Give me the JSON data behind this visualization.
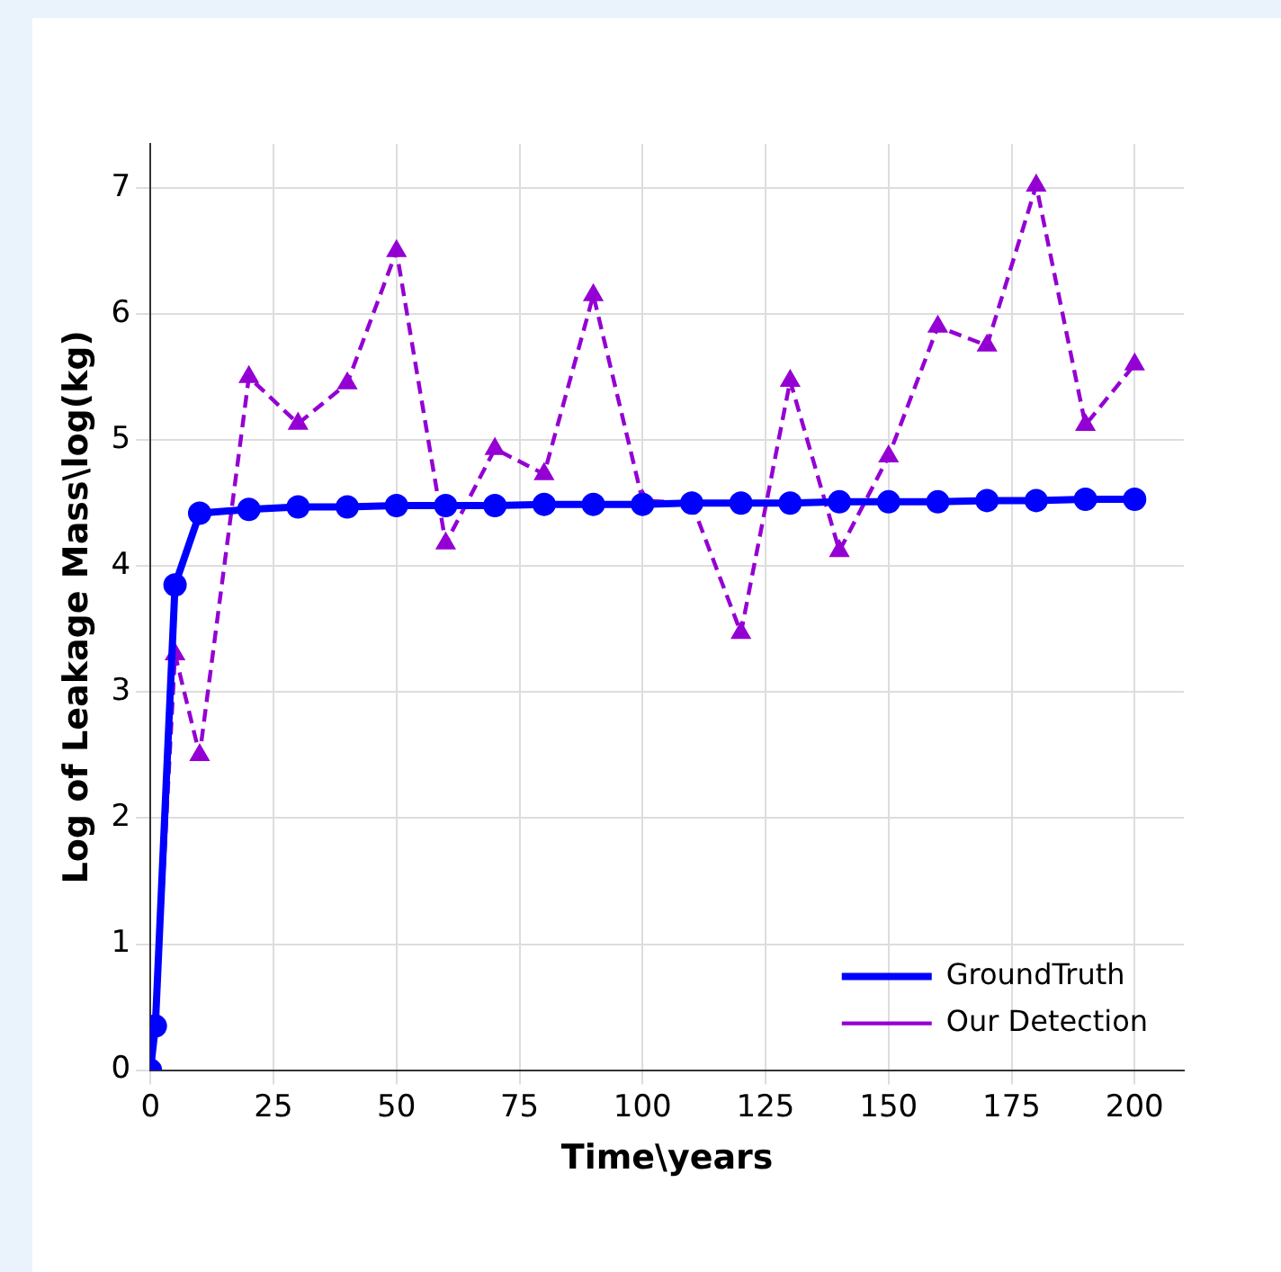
{
  "chart_data": {
    "type": "line",
    "xlabel": "Time\\years",
    "ylabel": "Log of Leakage Mass\\log(kg)",
    "x": [
      0,
      1,
      5,
      10,
      20,
      30,
      40,
      50,
      60,
      70,
      80,
      90,
      100,
      110,
      120,
      130,
      140,
      150,
      160,
      170,
      180,
      190,
      200
    ],
    "series": [
      {
        "name": "GroundTruth",
        "color": "#0000ff",
        "marker": "circle",
        "line_style": "solid",
        "values": [
          0,
          0.35,
          3.85,
          4.42,
          4.45,
          4.47,
          4.47,
          4.48,
          4.48,
          4.48,
          4.49,
          4.49,
          4.49,
          4.5,
          4.5,
          4.5,
          4.51,
          4.51,
          4.51,
          4.52,
          4.52,
          4.53,
          4.53
        ]
      },
      {
        "name": "Our Detection",
        "color": "#9400d3",
        "marker": "triangle",
        "line_style": "dashed",
        "values": [
          0,
          0.35,
          3.3,
          2.5,
          5.5,
          5.13,
          5.45,
          6.5,
          4.18,
          4.93,
          4.73,
          6.15,
          4.52,
          4.5,
          3.47,
          5.47,
          4.12,
          4.87,
          5.9,
          5.75,
          7.02,
          5.12,
          5.6
        ]
      }
    ],
    "xlim": [
      0,
      210
    ],
    "xticks": [
      0,
      25,
      50,
      75,
      100,
      125,
      150,
      175,
      200
    ],
    "ylim": [
      0,
      7.35
    ],
    "yticks": [
      0,
      1,
      2,
      3,
      4,
      5,
      6,
      7
    ],
    "grid": true,
    "legend": "bottom right"
  }
}
